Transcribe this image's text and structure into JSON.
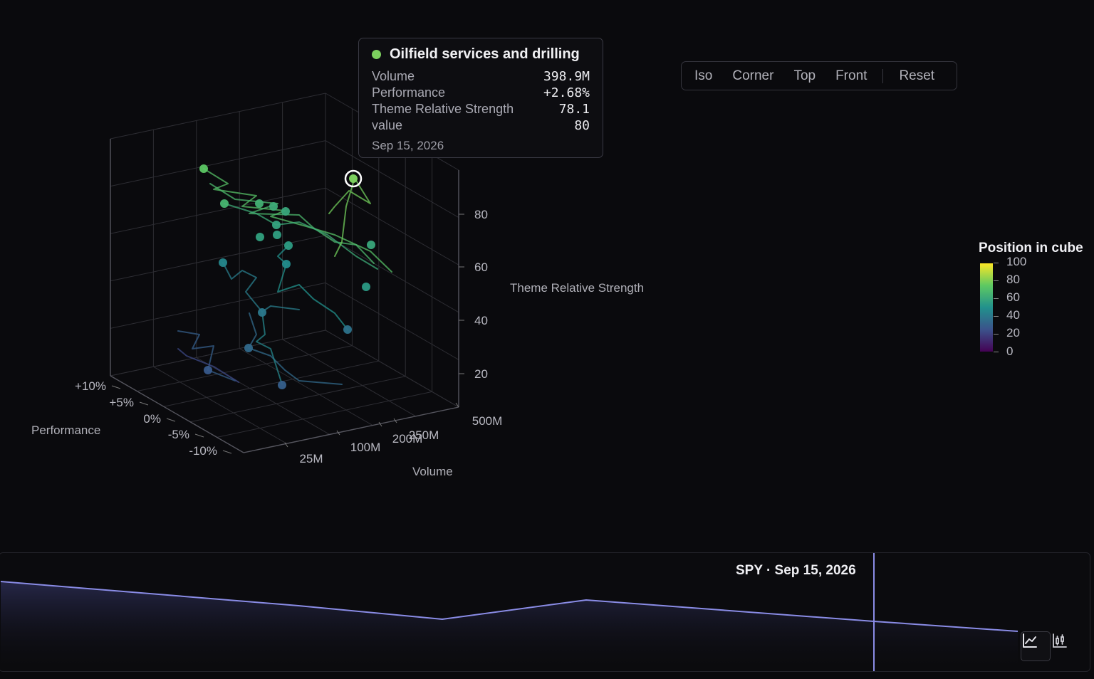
{
  "chart_data": {
    "type": "scatter3d",
    "axes": {
      "x": {
        "title": "Volume",
        "ticks": [
          "25M",
          "100M",
          "200M",
          "250M",
          "500M"
        ],
        "scale": "log"
      },
      "y": {
        "title": "Performance",
        "ticks": [
          "+10%",
          "+5%",
          "0%",
          "-5%",
          "-10%"
        ]
      },
      "z": {
        "title": "Theme Relative Strength",
        "ticks": [
          "20",
          "40",
          "60",
          "80"
        ],
        "range": [
          0,
          100
        ]
      }
    },
    "color_scale": {
      "title": "Position in cube",
      "ticks": [
        "100",
        "80",
        "60",
        "40",
        "20",
        "0"
      ],
      "colormap": "viridis"
    },
    "highlighted_point": {
      "series": "Oilfield services and drilling",
      "color": "#7ccf5e",
      "volume": "398.9M",
      "performance": "+2.68%",
      "theme_relative_strength": "78.1",
      "value": "80",
      "date": "Sep 15, 2026"
    }
  },
  "tooltip": {
    "title": "Oilfield services and drilling",
    "rows": [
      {
        "label": "Volume",
        "value": "398.9M"
      },
      {
        "label": "Performance",
        "value": "+2.68%"
      },
      {
        "label": "Theme Relative Strength",
        "value": "78.1"
      },
      {
        "label": "value",
        "value": "80"
      }
    ],
    "date": "Sep 15, 2026"
  },
  "view_buttons": [
    "Iso",
    "Corner",
    "Top",
    "Front",
    "Reset"
  ],
  "mini_chart": {
    "label": "SPY · Sep 15, 2026",
    "line_color": "#8c8ee8"
  },
  "icons": {
    "line": "line-chart-icon",
    "candle": "candlestick-chart-icon"
  }
}
